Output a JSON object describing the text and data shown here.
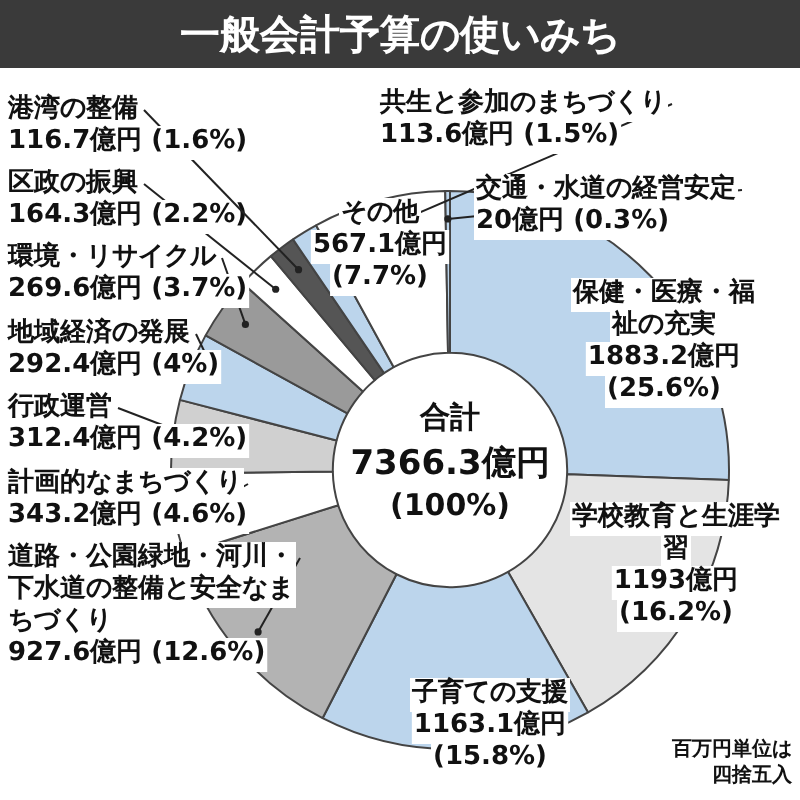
{
  "chart_data": {
    "type": "donut",
    "title": "一般会計予算の使いみち",
    "categories": [
      "保健・医療・福祉の充実",
      "学校教育と生涯学習",
      "子育ての支援",
      "道路・公園緑地・河川・下水道の整備と安全なまちづくり",
      "計画的なまちづくり",
      "行政運営",
      "地域経済の発展",
      "環境・リサイクル",
      "区政の振興",
      "港湾の整備",
      "共生と参加のまちづくり",
      "その他",
      "交通・水道の経営安定"
    ],
    "values": [
      1883.2,
      1193,
      1163.1,
      927.6,
      343.2,
      312.4,
      292.4,
      269.6,
      164.3,
      116.7,
      113.6,
      567.1,
      20
    ],
    "value_labels": [
      "1883.2億円 (25.6%)",
      "1193億円 (16.2%)",
      "1163.1億円 (15.8%)",
      "927.6億円 (12.6%)",
      "343.2億円 (4.6%)",
      "312.4億円 (4.2%)",
      "292.4億円 (4%)",
      "269.6億円 (3.7%)",
      "164.3億円 (2.2%)",
      "116.7億円 (1.6%)",
      "113.6億円 (1.5%)",
      "567.1億円 (7.7%)",
      "20億円 (0.3%)"
    ],
    "colors": [
      "#bcd5ec",
      "#e4e4e4",
      "#bcd5ec",
      "#b3b3b3",
      "#ffffff",
      "#d0d0d0",
      "#bcd5ec",
      "#9a9a9a",
      "#ffffff",
      "#555555",
      "#bcd5ec",
      "#ffffff",
      "#bcd5ec"
    ],
    "annotations": [
      "合計",
      "7366.3億円",
      "(100%)",
      "百万円単位は四捨五入"
    ],
    "legend": false
  }
}
